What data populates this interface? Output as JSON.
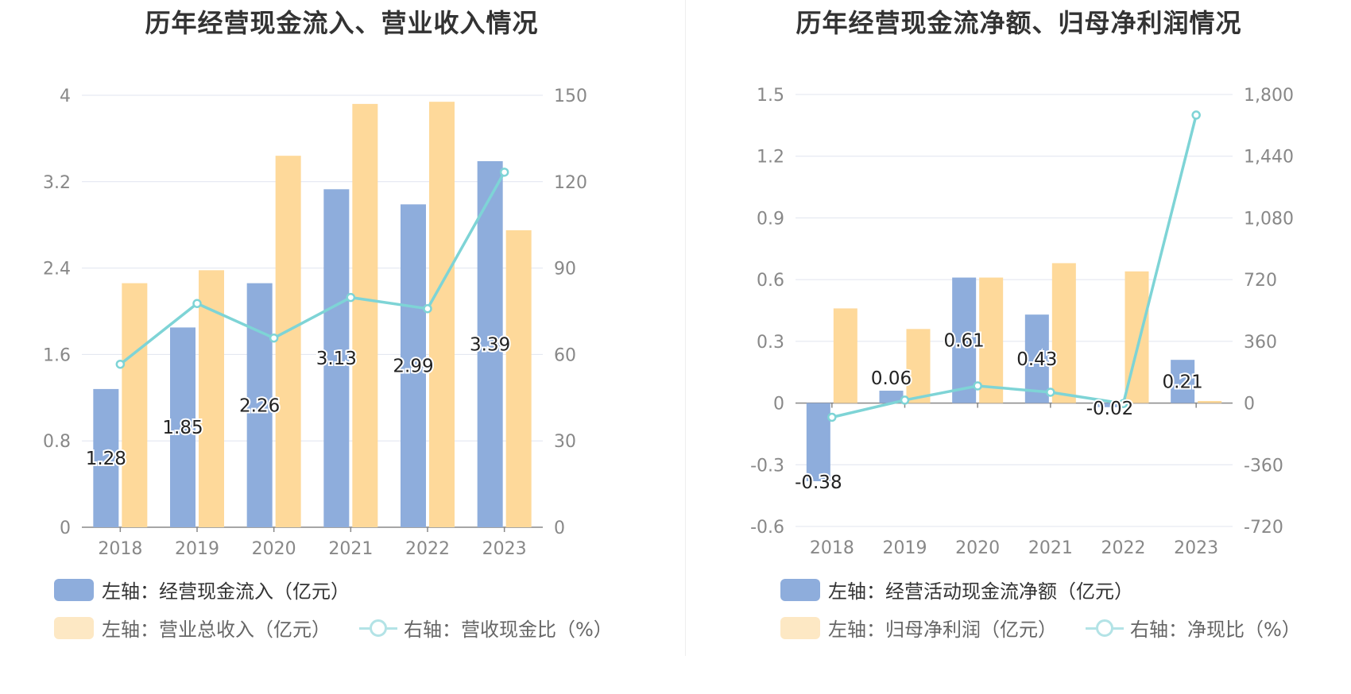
{
  "colors": {
    "bar_primary": "#8eaddc",
    "bar_secondary": "#fed99a",
    "line": "#7ed4d6",
    "grid": "#e0e4ef",
    "axis": "#888888"
  },
  "chart_data": [
    {
      "type": "bar",
      "title": "历年经营现金流入、营业收入情况",
      "categories": [
        "2018",
        "2019",
        "2020",
        "2021",
        "2022",
        "2023"
      ],
      "y_left": {
        "ticks": [
          "0",
          "0.8",
          "1.6",
          "2.4",
          "3.2",
          "4"
        ],
        "range": [
          0,
          4
        ]
      },
      "y_right": {
        "ticks": [
          "0",
          "30",
          "60",
          "90",
          "120",
          "150"
        ],
        "range": [
          0,
          150
        ]
      },
      "series": [
        {
          "name": "左轴：经营现金流入（亿元）",
          "type": "bar",
          "axis": "left",
          "values": [
            1.28,
            1.85,
            2.26,
            3.13,
            2.99,
            3.39
          ],
          "labels": [
            "1.28",
            "1.85",
            "2.26",
            "3.13",
            "2.99",
            "3.39"
          ]
        },
        {
          "name": "左轴：营业总收入（亿元）",
          "type": "bar",
          "axis": "left",
          "values": [
            2.26,
            2.38,
            3.44,
            3.92,
            3.94,
            2.75
          ]
        },
        {
          "name": "右轴：营收现金比（%）",
          "type": "line",
          "axis": "right",
          "values": [
            56.6,
            77.7,
            65.7,
            79.8,
            75.9,
            123.3
          ]
        }
      ],
      "legend": [
        "左轴：经营现金流入（亿元）",
        "左轴：营业总收入（亿元）",
        "右轴：营收现金比（%）"
      ]
    },
    {
      "type": "bar",
      "title": "历年经营现金流净额、归母净利润情况",
      "categories": [
        "2018",
        "2019",
        "2020",
        "2021",
        "2022",
        "2023"
      ],
      "y_left": {
        "ticks": [
          "-0.6",
          "-0.3",
          "0",
          "0.3",
          "0.6",
          "0.9",
          "1.2",
          "1.5"
        ],
        "range": [
          -0.6,
          1.5
        ]
      },
      "y_right": {
        "ticks": [
          "-720",
          "-360",
          "0",
          "360",
          "720",
          "1,080",
          "1,440",
          "1,800"
        ],
        "range": [
          -720,
          1800
        ]
      },
      "series": [
        {
          "name": "左轴：经营活动现金流净额（亿元）",
          "type": "bar",
          "axis": "left",
          "values": [
            -0.38,
            0.06,
            0.61,
            0.43,
            -0.02,
            0.21
          ],
          "labels": [
            "-0.38",
            "0.06",
            "0.61",
            "0.43",
            "-0.02",
            "0.21"
          ]
        },
        {
          "name": "左轴：归母净利润（亿元）",
          "type": "bar",
          "axis": "left",
          "values": [
            0.46,
            0.36,
            0.61,
            0.68,
            0.64,
            0.01
          ]
        },
        {
          "name": "右轴：净现比（%）",
          "type": "line",
          "axis": "right",
          "values": [
            -83,
            17,
            100,
            63,
            -3,
            1680
          ]
        }
      ],
      "legend": [
        "左轴：经营活动现金流净额（亿元）",
        "左轴：归母净利润（亿元）",
        "右轴：净现比（%）"
      ]
    }
  ]
}
